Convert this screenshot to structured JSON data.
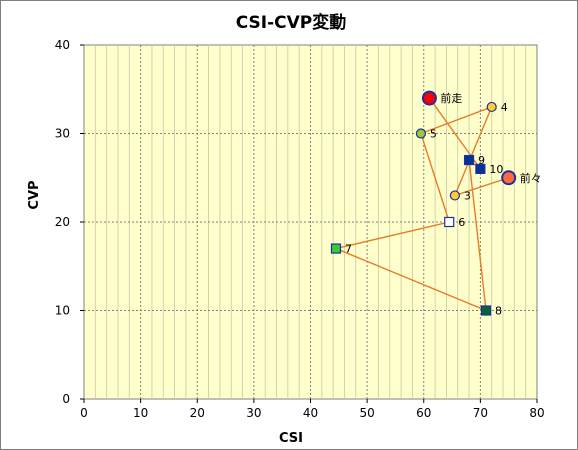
{
  "chart_data": {
    "type": "scatter",
    "title": "CSI-CVP変動",
    "xlabel": "CSI",
    "ylabel": "CVP",
    "xlim": [
      0,
      80
    ],
    "ylim": [
      0,
      40
    ],
    "xticks": [
      0,
      10,
      20,
      30,
      40,
      50,
      60,
      70,
      80
    ],
    "yticks": [
      0,
      10,
      20,
      30,
      40
    ],
    "grid": true,
    "legend": "none",
    "colors": {
      "plot_background": "#FFFFCC",
      "line": "#E87A2A",
      "grid": "#808080"
    },
    "path_order": [
      "前々",
      "3",
      "4",
      "5",
      "6",
      "7",
      "8",
      "9",
      "10",
      "前走"
    ],
    "points": [
      {
        "label": "前々",
        "x": 75,
        "y": 25,
        "marker": "circle",
        "fill": "#FF6A3D",
        "stroke": "#1f2f9f",
        "size": "large"
      },
      {
        "label": "3",
        "x": 65.5,
        "y": 23,
        "marker": "circle",
        "fill": "#FFCC33",
        "stroke": "#1f2f9f",
        "size": "small"
      },
      {
        "label": "4",
        "x": 72,
        "y": 33,
        "marker": "circle",
        "fill": "#FFCC33",
        "stroke": "#1f2f9f",
        "size": "small"
      },
      {
        "label": "5",
        "x": 59.5,
        "y": 30,
        "marker": "circle",
        "fill": "#99CC33",
        "stroke": "#1f2f9f",
        "size": "small"
      },
      {
        "label": "6",
        "x": 64.5,
        "y": 20,
        "marker": "square",
        "fill": "#FFFFFF",
        "stroke": "#1f2f9f",
        "size": "small"
      },
      {
        "label": "7",
        "x": 44.5,
        "y": 17,
        "marker": "square",
        "fill": "#33CC33",
        "stroke": "#1f2f9f",
        "size": "small"
      },
      {
        "label": "8",
        "x": 71,
        "y": 10,
        "marker": "square",
        "fill": "#006633",
        "stroke": "#1f2f9f",
        "size": "small"
      },
      {
        "label": "9",
        "x": 68,
        "y": 27,
        "marker": "square",
        "fill": "#003399",
        "stroke": "#1f2f9f",
        "size": "small"
      },
      {
        "label": "10",
        "x": 70,
        "y": 26,
        "marker": "square",
        "fill": "#003399",
        "stroke": "#1f2f9f",
        "size": "small"
      },
      {
        "label": "前走",
        "x": 61,
        "y": 34,
        "marker": "circle",
        "fill": "#FF0000",
        "stroke": "#1f2f9f",
        "size": "large"
      }
    ]
  }
}
